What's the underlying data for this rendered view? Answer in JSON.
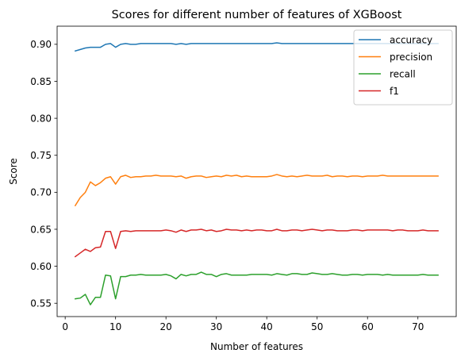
{
  "chart_data": {
    "type": "line",
    "title": "Scores for different number of features of XGBoost",
    "xlabel": "Number of features",
    "ylabel": "Score",
    "xlim": [
      -1.6,
      77.6
    ],
    "ylim": [
      0.532,
      0.9245
    ],
    "xticks": [
      0,
      10,
      20,
      30,
      40,
      50,
      60,
      70
    ],
    "yticks": [
      0.55,
      0.6,
      0.65,
      0.7,
      0.75,
      0.8,
      0.85,
      0.9
    ],
    "ytick_labels": [
      "0.55",
      "0.60",
      "0.65",
      "0.70",
      "0.75",
      "0.80",
      "0.85",
      "0.90"
    ],
    "grid": false,
    "legend_position": "top-right",
    "x": [
      2,
      3,
      4,
      5,
      6,
      7,
      8,
      9,
      10,
      11,
      12,
      13,
      14,
      15,
      16,
      17,
      18,
      19,
      20,
      21,
      22,
      23,
      24,
      25,
      26,
      27,
      28,
      29,
      30,
      31,
      32,
      33,
      34,
      35,
      36,
      37,
      38,
      39,
      40,
      41,
      42,
      43,
      44,
      45,
      46,
      47,
      48,
      49,
      50,
      51,
      52,
      53,
      54,
      55,
      56,
      57,
      58,
      59,
      60,
      61,
      62,
      63,
      64,
      65,
      66,
      67,
      68,
      69,
      70,
      71,
      72,
      73,
      74
    ],
    "series": [
      {
        "name": "accuracy",
        "color": "#1f77b4",
        "values": [
          0.891,
          0.893,
          0.895,
          0.896,
          0.896,
          0.896,
          0.9,
          0.901,
          0.896,
          0.9,
          0.901,
          0.9,
          0.9,
          0.901,
          0.901,
          0.901,
          0.901,
          0.901,
          0.901,
          0.901,
          0.9,
          0.901,
          0.9,
          0.901,
          0.901,
          0.901,
          0.901,
          0.901,
          0.901,
          0.901,
          0.901,
          0.901,
          0.901,
          0.901,
          0.901,
          0.901,
          0.901,
          0.901,
          0.901,
          0.901,
          0.902,
          0.901,
          0.901,
          0.901,
          0.901,
          0.901,
          0.901,
          0.901,
          0.901,
          0.901,
          0.901,
          0.901,
          0.901,
          0.901,
          0.901,
          0.901,
          0.901,
          0.901,
          0.901,
          0.901,
          0.901,
          0.901,
          0.901,
          0.901,
          0.901,
          0.901,
          0.901,
          0.901,
          0.901,
          0.901,
          0.901,
          0.901,
          0.901
        ]
      },
      {
        "name": "precision",
        "color": "#ff7f0e",
        "values": [
          0.682,
          0.693,
          0.7,
          0.714,
          0.709,
          0.713,
          0.719,
          0.721,
          0.711,
          0.721,
          0.723,
          0.72,
          0.721,
          0.721,
          0.722,
          0.722,
          0.723,
          0.722,
          0.722,
          0.722,
          0.721,
          0.722,
          0.719,
          0.721,
          0.722,
          0.722,
          0.72,
          0.721,
          0.722,
          0.721,
          0.723,
          0.722,
          0.723,
          0.721,
          0.722,
          0.721,
          0.721,
          0.721,
          0.721,
          0.722,
          0.724,
          0.722,
          0.721,
          0.722,
          0.721,
          0.722,
          0.723,
          0.722,
          0.722,
          0.722,
          0.723,
          0.721,
          0.722,
          0.722,
          0.721,
          0.722,
          0.722,
          0.721,
          0.722,
          0.722,
          0.722,
          0.723,
          0.722,
          0.722,
          0.722,
          0.722,
          0.722,
          0.722,
          0.722,
          0.722,
          0.722,
          0.722,
          0.722
        ]
      },
      {
        "name": "recall",
        "color": "#2ca02c",
        "values": [
          0.556,
          0.557,
          0.562,
          0.548,
          0.558,
          0.558,
          0.588,
          0.587,
          0.556,
          0.586,
          0.586,
          0.588,
          0.588,
          0.589,
          0.588,
          0.588,
          0.588,
          0.588,
          0.589,
          0.587,
          0.583,
          0.589,
          0.587,
          0.589,
          0.589,
          0.592,
          0.589,
          0.589,
          0.586,
          0.589,
          0.59,
          0.588,
          0.588,
          0.588,
          0.588,
          0.589,
          0.589,
          0.589,
          0.589,
          0.588,
          0.59,
          0.589,
          0.588,
          0.59,
          0.59,
          0.589,
          0.589,
          0.591,
          0.59,
          0.589,
          0.589,
          0.59,
          0.589,
          0.588,
          0.588,
          0.589,
          0.589,
          0.588,
          0.589,
          0.589,
          0.589,
          0.588,
          0.589,
          0.588,
          0.588,
          0.588,
          0.588,
          0.588,
          0.588,
          0.589,
          0.588,
          0.588,
          0.588
        ]
      },
      {
        "name": "f1",
        "color": "#d62728",
        "values": [
          0.613,
          0.618,
          0.623,
          0.62,
          0.625,
          0.626,
          0.647,
          0.647,
          0.624,
          0.647,
          0.648,
          0.647,
          0.648,
          0.648,
          0.648,
          0.648,
          0.648,
          0.648,
          0.649,
          0.648,
          0.646,
          0.649,
          0.647,
          0.649,
          0.649,
          0.65,
          0.648,
          0.649,
          0.647,
          0.648,
          0.65,
          0.649,
          0.649,
          0.648,
          0.649,
          0.648,
          0.649,
          0.649,
          0.648,
          0.648,
          0.65,
          0.648,
          0.648,
          0.649,
          0.649,
          0.648,
          0.649,
          0.65,
          0.649,
          0.648,
          0.649,
          0.649,
          0.648,
          0.648,
          0.648,
          0.649,
          0.649,
          0.648,
          0.649,
          0.649,
          0.649,
          0.649,
          0.649,
          0.648,
          0.649,
          0.649,
          0.648,
          0.648,
          0.648,
          0.649,
          0.648,
          0.648,
          0.648
        ]
      }
    ]
  }
}
